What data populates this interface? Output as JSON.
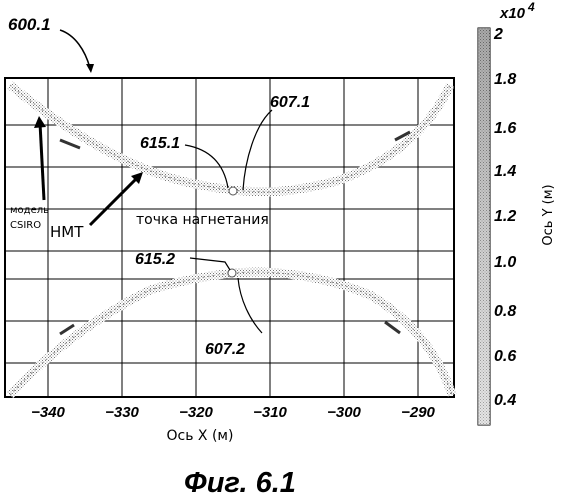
{
  "figure": {
    "ref_number": "600.1",
    "caption": "Фиг. 6.1"
  },
  "plot": {
    "x_axis_label": "Ось X (м)",
    "x_ticks": [
      "−340",
      "−330",
      "−320",
      "−310",
      "−300",
      "−290"
    ],
    "annotations": {
      "label_615_1": "615.1",
      "label_607_1": "607.1",
      "label_615_2": "615.2",
      "label_607_2": "607.2",
      "model_line1": "модель",
      "model_line2": "CSIRO",
      "hmt": "НМТ",
      "injection_point": "точка нагнетания"
    }
  },
  "colorbar": {
    "multiplier": "x10",
    "multiplier_exp": "4",
    "ticks": [
      "2",
      "1.8",
      "1.6",
      "1.4",
      "1.2",
      "1.0",
      "0.8",
      "0.6",
      "0.4"
    ],
    "axis_label": "Ось Y (м)"
  }
}
